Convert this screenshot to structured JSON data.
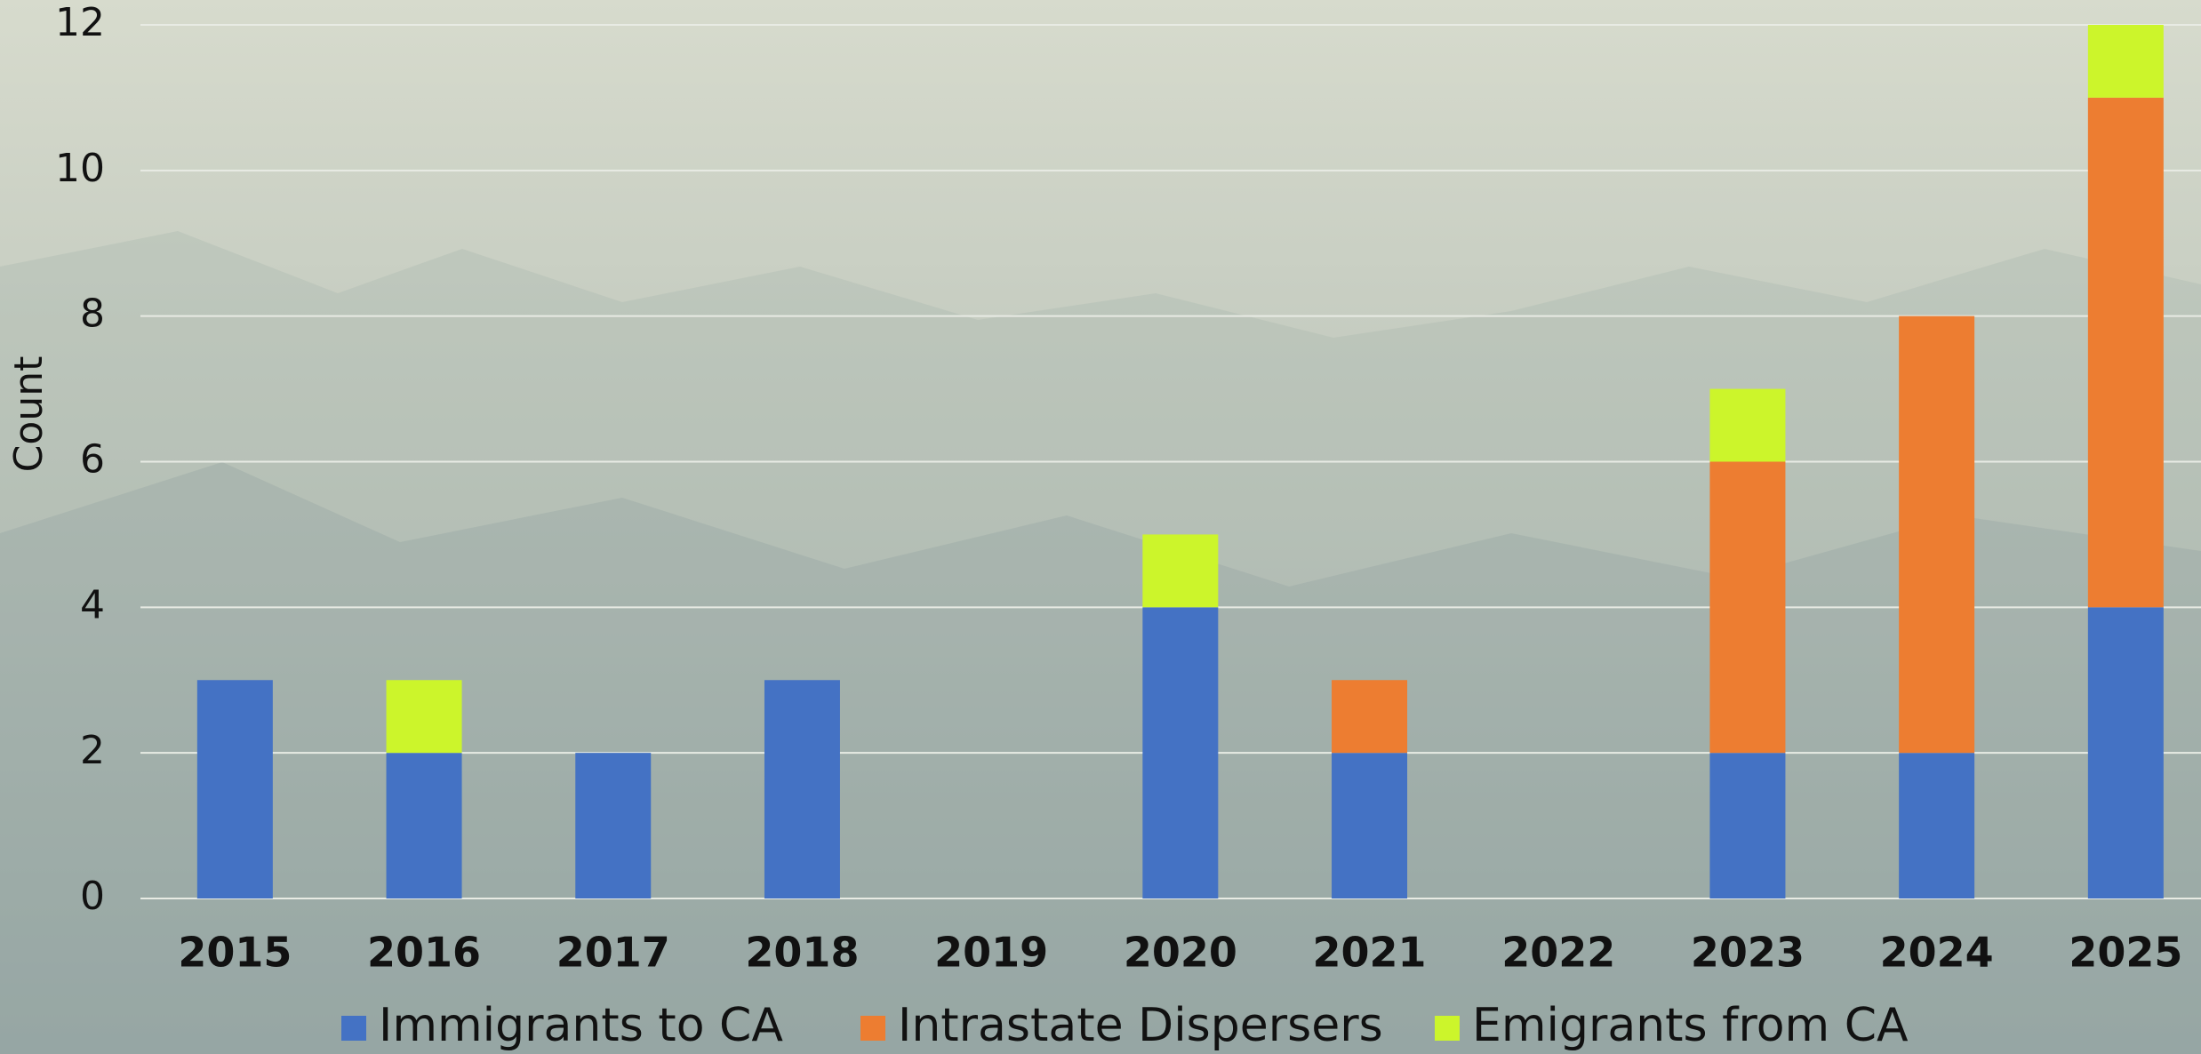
{
  "chart_data": {
    "type": "stacked_bar",
    "y_label": "Count",
    "categories": [
      "2015",
      "2016",
      "2017",
      "2018",
      "2019",
      "2020",
      "2021",
      "2022",
      "2023",
      "2024",
      "2025"
    ],
    "series": [
      {
        "name": "Immigrants to CA",
        "color": "#4472c4",
        "values": [
          3,
          2,
          2,
          3,
          0,
          4,
          2,
          0,
          2,
          2,
          4
        ]
      },
      {
        "name": "Intrastate Dispersers",
        "color": "#ed7d31",
        "values": [
          0,
          0,
          0,
          0,
          0,
          0,
          1,
          0,
          4,
          6,
          7
        ]
      },
      {
        "name": "Emigrants from CA",
        "color": "#ccf52b",
        "values": [
          0,
          1,
          0,
          0,
          0,
          1,
          0,
          0,
          1,
          0,
          1
        ]
      }
    ],
    "ylim": [
      0,
      12
    ],
    "yticks": [
      0,
      2,
      4,
      6,
      8,
      10,
      12
    ],
    "grid": true,
    "legend": "bottom"
  }
}
